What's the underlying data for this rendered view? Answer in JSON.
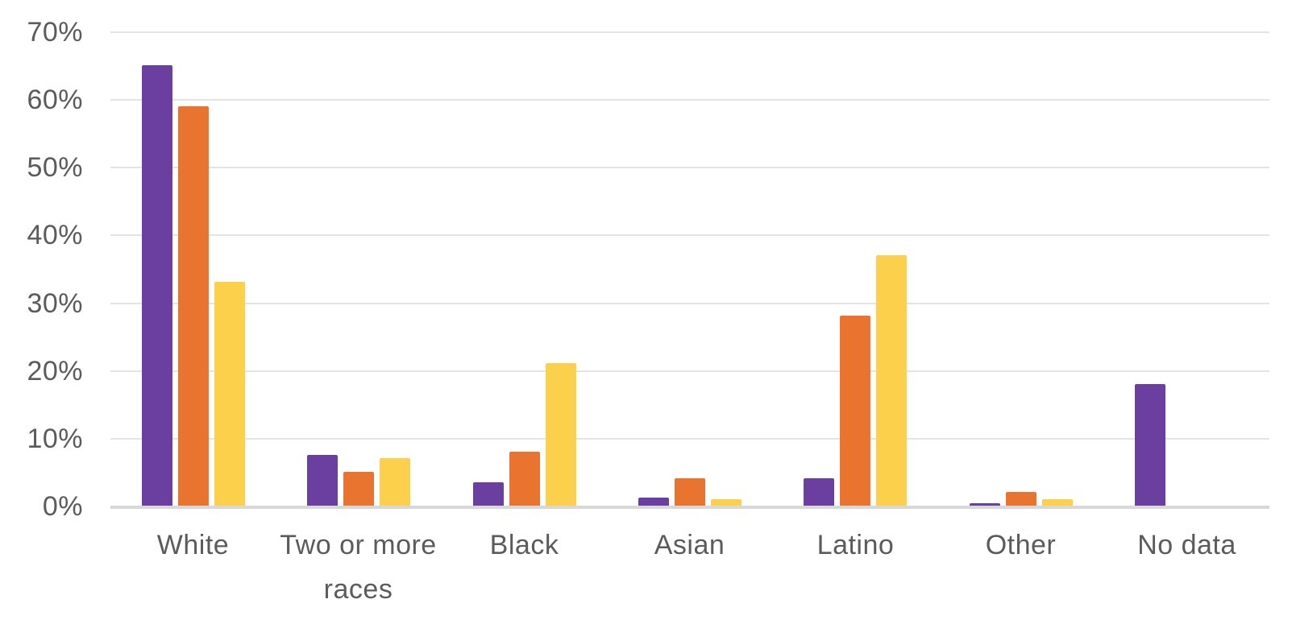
{
  "chart_data": {
    "type": "bar",
    "title": "",
    "xlabel": "",
    "ylabel": "",
    "categories": [
      "White",
      "Two or more races",
      "Black",
      "Asian",
      "Latino",
      "Other",
      "No data"
    ],
    "series": [
      {
        "name": "purple-series",
        "color": "#6b3fa0",
        "values": [
          65,
          7.5,
          3.5,
          1.2,
          4,
          0.3,
          18
        ]
      },
      {
        "name": "orange-series",
        "color": "#e8742f",
        "values": [
          59,
          5,
          8,
          4,
          28,
          2,
          0
        ]
      },
      {
        "name": "yellow-series",
        "color": "#fcd04a",
        "values": [
          33,
          7,
          21,
          1,
          37,
          1,
          0
        ]
      }
    ],
    "ylim": [
      0,
      70
    ],
    "ytick_step": 10,
    "ytick_labels": [
      "0%",
      "10%",
      "20%",
      "30%",
      "40%",
      "50%",
      "60%",
      "70%"
    ],
    "grid": true,
    "legend": false,
    "colors": {
      "gridline": "#e4e4e4",
      "axis_line": "#d8d8d8",
      "tick_text": "#5b5b5b",
      "background": "#ffffff"
    }
  }
}
